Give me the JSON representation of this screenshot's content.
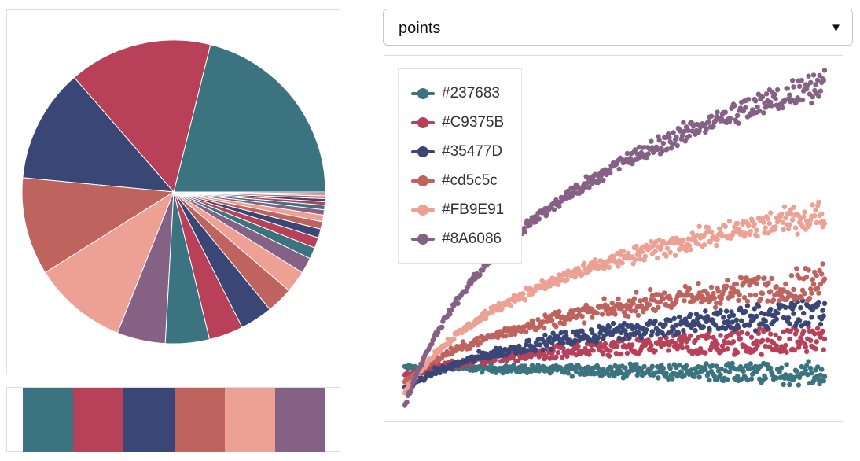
{
  "palette": [
    "#237683",
    "#C9375B",
    "#35477D",
    "#cd5c5c",
    "#FB9E91",
    "#8A6086"
  ],
  "render_colors": [
    "#3b7480",
    "#b84059",
    "#3a4676",
    "#bf635f",
    "#eca194",
    "#856285"
  ],
  "dropdown": {
    "selected": "points"
  },
  "chart_data": [
    {
      "type": "pie",
      "title": "",
      "slices": [
        22.5,
        16.3,
        12.9,
        11.1,
        10.7,
        5.5,
        5.0,
        3.9,
        3.7,
        3.0,
        2.5,
        1.8,
        1.3,
        1.2,
        1.0,
        0.85,
        0.75,
        0.6,
        0.5,
        0.4,
        0.35,
        0.3,
        0.25,
        0.2
      ],
      "colors_cycle": "palette"
    },
    {
      "type": "scatter",
      "title": "",
      "mode": "points",
      "xlim": [
        0,
        1
      ],
      "ylim": [
        0,
        1
      ],
      "series": [
        {
          "name": "#237683",
          "start": 0.115,
          "end": 0.095,
          "shape": "flat",
          "noise": 0.016
        },
        {
          "name": "#C9375B",
          "start": 0.09,
          "end": 0.2,
          "shape": "log",
          "noise": 0.022
        },
        {
          "name": "#35477D",
          "start": 0.05,
          "end": 0.28,
          "shape": "log",
          "noise": 0.022
        },
        {
          "name": "#cd5c5c",
          "start": 0.07,
          "end": 0.37,
          "shape": "log",
          "noise": 0.024
        },
        {
          "name": "#FB9E91",
          "start": 0.04,
          "end": 0.57,
          "shape": "log",
          "noise": 0.02
        },
        {
          "name": "#8A6086",
          "start": 0.0,
          "end": 0.96,
          "shape": "log",
          "noise": 0.02
        }
      ]
    }
  ]
}
